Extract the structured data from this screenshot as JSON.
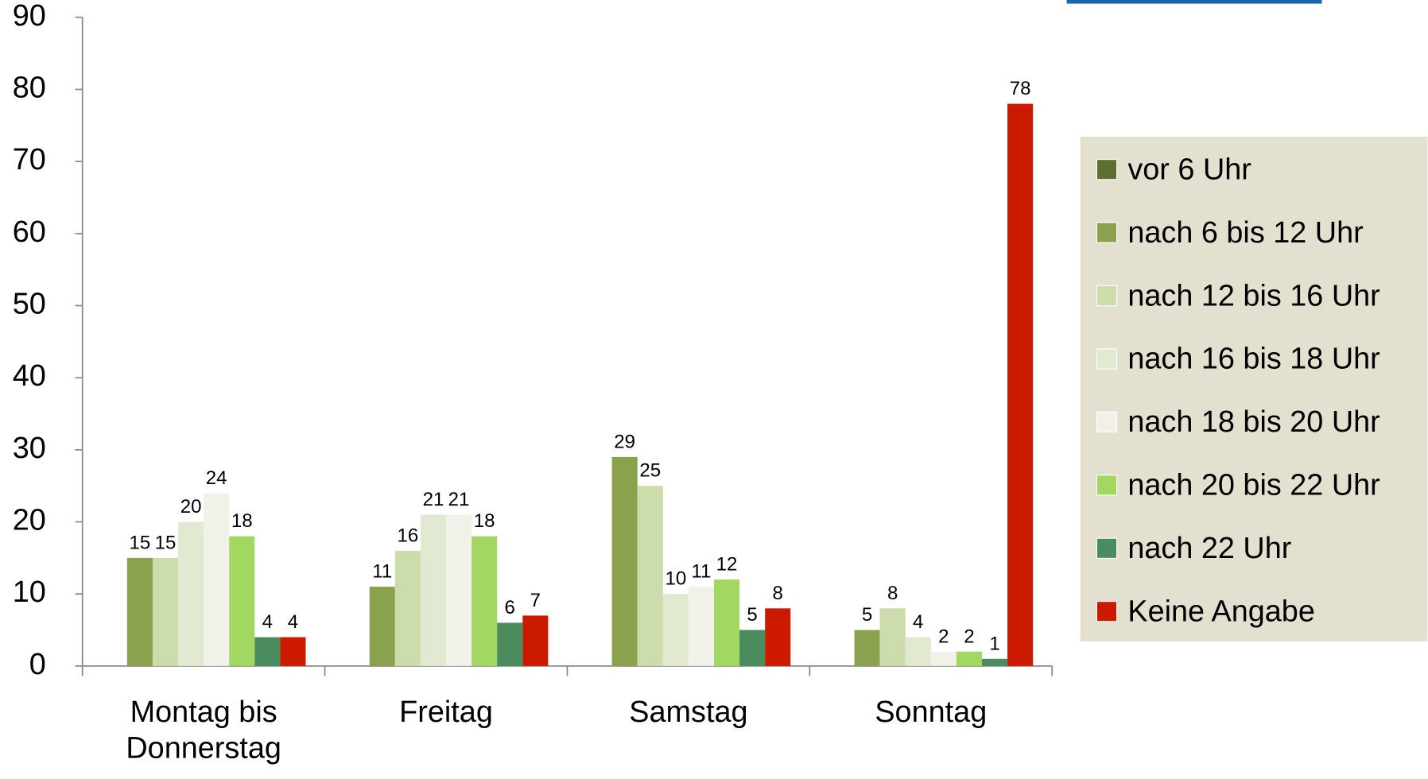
{
  "chart_data": {
    "type": "bar",
    "categories": [
      "Montag bis Donnerstag",
      "Freitag",
      "Samstag",
      "Sonntag"
    ],
    "series": [
      {
        "name": "vor 6 Uhr",
        "color": "#5e6f32",
        "values": [
          null,
          null,
          null,
          null
        ]
      },
      {
        "name": "nach 6 bis 12 Uhr",
        "color": "#8aa24d",
        "values": [
          15,
          11,
          29,
          5
        ]
      },
      {
        "name": "nach 12 bis 16 Uhr",
        "color": "#ccdcaa",
        "values": [
          15,
          16,
          25,
          8
        ]
      },
      {
        "name": "nach 16 bis 18 Uhr",
        "color": "#e1e9d1",
        "values": [
          20,
          21,
          10,
          4
        ]
      },
      {
        "name": "nach 18 bis 20 Uhr",
        "color": "#f1f1ea",
        "values": [
          24,
          21,
          11,
          2
        ]
      },
      {
        "name": "nach 20 bis 22 Uhr",
        "color": "#a2d862",
        "values": [
          18,
          18,
          12,
          2
        ]
      },
      {
        "name": "nach 22 Uhr",
        "color": "#4b8c5f",
        "values": [
          4,
          6,
          5,
          1
        ]
      },
      {
        "name": "Keine Angabe",
        "color": "#cc1a00",
        "values": [
          4,
          7,
          8,
          78
        ]
      }
    ],
    "ylim": [
      0,
      90
    ],
    "yticks": [
      0,
      10,
      20,
      30,
      40,
      50,
      60,
      70,
      80,
      90
    ],
    "legend": "right"
  }
}
